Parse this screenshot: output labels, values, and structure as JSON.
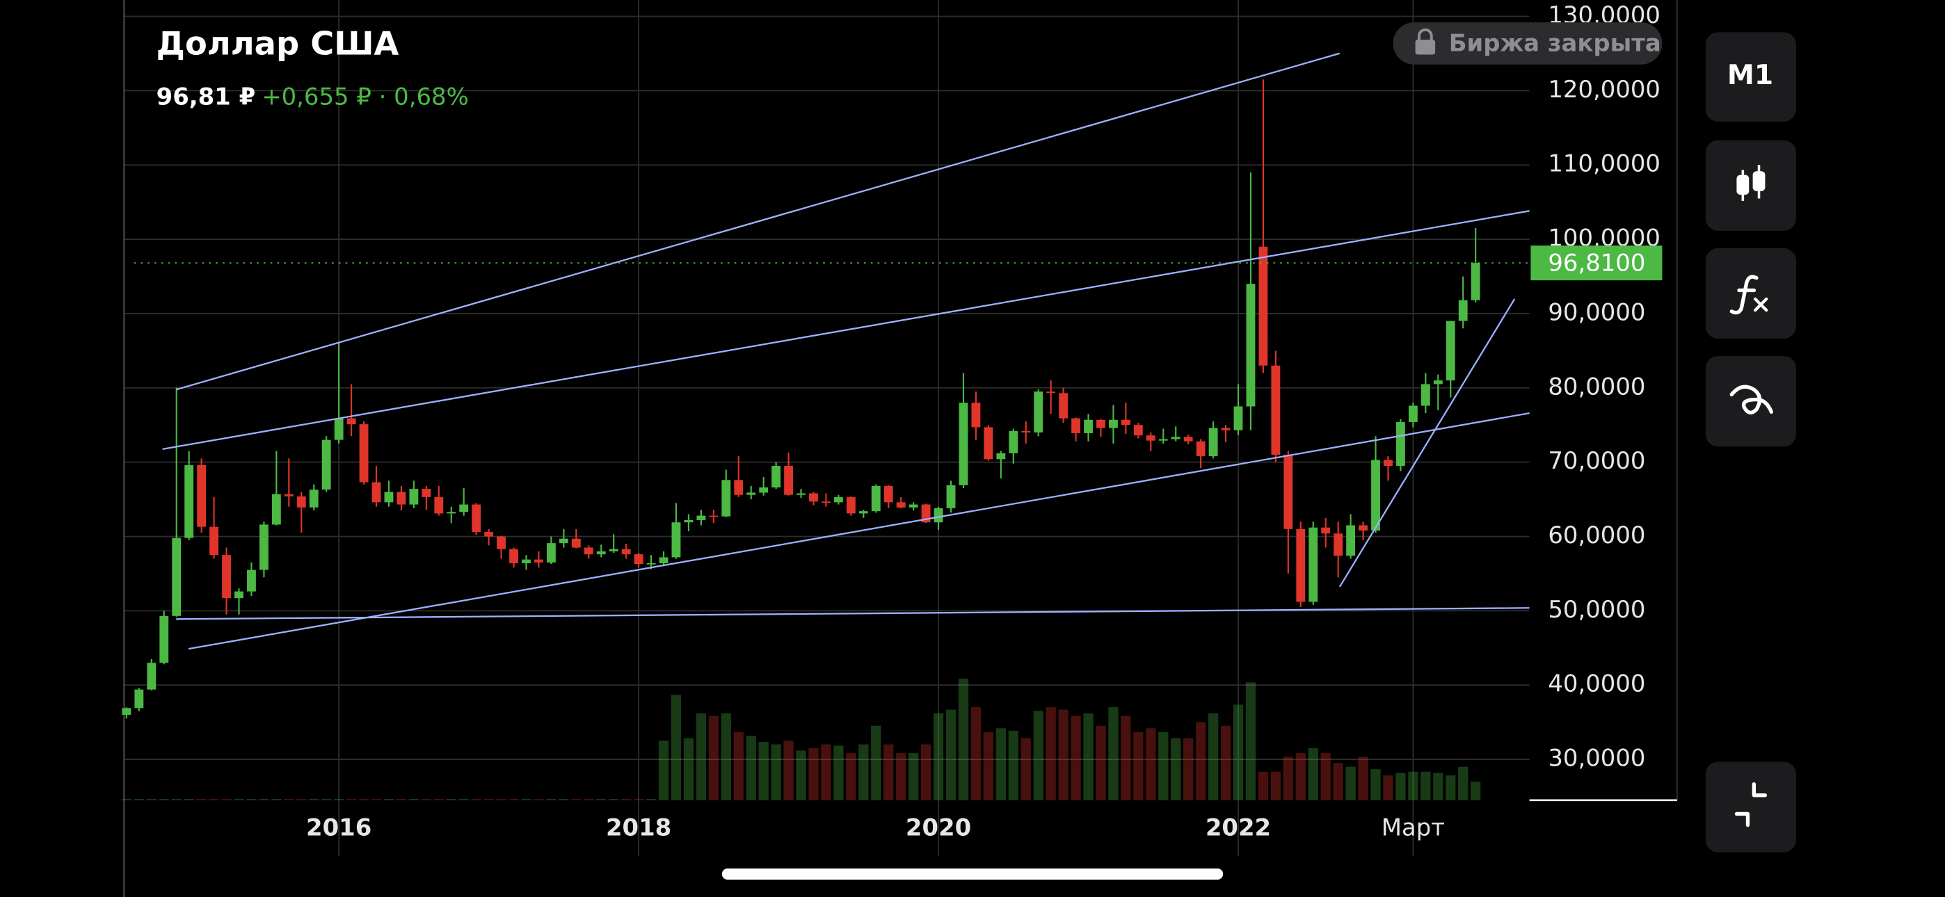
{
  "chart_data": {
    "type": "candlestick",
    "title": "Доллар США",
    "price_label": "96,81 ₽",
    "change_label": "+0,655 ₽ · 0,68%",
    "status_label": "Биржа закрыта",
    "interval_label": "M1",
    "x": [
      "2014-08",
      "2014-09",
      "2014-10",
      "2014-11",
      "2014-12",
      "2015-01",
      "2015-02",
      "2015-03",
      "2015-04",
      "2015-05",
      "2015-06",
      "2015-07",
      "2015-08",
      "2015-09",
      "2015-10",
      "2015-11",
      "2015-12",
      "2016-01",
      "2016-02",
      "2016-03",
      "2016-04",
      "2016-05",
      "2016-06",
      "2016-07",
      "2016-08",
      "2016-09",
      "2016-10",
      "2016-11",
      "2016-12",
      "2017-01",
      "2017-02",
      "2017-03",
      "2017-04",
      "2017-05",
      "2017-06",
      "2017-07",
      "2017-08",
      "2017-09",
      "2017-10",
      "2017-11",
      "2017-12",
      "2018-01",
      "2018-02",
      "2018-03",
      "2018-04",
      "2018-05",
      "2018-06",
      "2018-07",
      "2018-08",
      "2018-09",
      "2018-10",
      "2018-11",
      "2018-12",
      "2019-01",
      "2019-02",
      "2019-03",
      "2019-04",
      "2019-05",
      "2019-06",
      "2019-07",
      "2019-08",
      "2019-09",
      "2019-10",
      "2019-11",
      "2019-12",
      "2020-01",
      "2020-02",
      "2020-03",
      "2020-04",
      "2020-05",
      "2020-06",
      "2020-07",
      "2020-08",
      "2020-09",
      "2020-10",
      "2020-11",
      "2020-12",
      "2021-01",
      "2021-02",
      "2021-03",
      "2021-04",
      "2021-05",
      "2021-06",
      "2021-07",
      "2021-08",
      "2021-09",
      "2021-10",
      "2021-11",
      "2021-12",
      "2022-01",
      "2022-02",
      "2022-03",
      "2022-04",
      "2022-05",
      "2022-06",
      "2022-07",
      "2022-08",
      "2022-09",
      "2022-10",
      "2022-11",
      "2022-12",
      "2023-01",
      "2023-02",
      "2023-03",
      "2023-04",
      "2023-05",
      "2023-06",
      "2023-07",
      "2023-08"
    ],
    "open": [
      36,
      36.9,
      39.4,
      43.0,
      49.3,
      59.8,
      69.6,
      61.3,
      57.5,
      51.7,
      52.6,
      55.5,
      61.6,
      65.7,
      65.4,
      63.9,
      66.3,
      73.0,
      75.9,
      75.1,
      67.3,
      64.6,
      66.0,
      64.3,
      66.4,
      65.3,
      63.1,
      63.3,
      64.3,
      60.6,
      60.0,
      58.3,
      56.4,
      56.9,
      56.5,
      59.1,
      59.7,
      58.5,
      57.6,
      58.0,
      58.3,
      57.6,
      56.3,
      56.4,
      57.2,
      61.9,
      62.2,
      62.8,
      62.7,
      67.6,
      65.6,
      65.9,
      66.6,
      69.5,
      65.6,
      65.8,
      64.7,
      64.6,
      65.3,
      63.1,
      63.4,
      66.8,
      64.6,
      63.9,
      64.3,
      61.9,
      63.8,
      66.9,
      78.0,
      74.7,
      70.4,
      71.2,
      74.2,
      74.0,
      79.5,
      79.3,
      75.9,
      73.9,
      75.7,
      74.6,
      75.7,
      75.0,
      73.6,
      72.9,
      73.1,
      73.4,
      72.8,
      70.8,
      74.6,
      74.3,
      77.5,
      99.0,
      83.0,
      71.0,
      61,
      51.2,
      61.2,
      60.4,
      57.4,
      61.5,
      60.8,
      70.3,
      69.5,
      75.4,
      77.6,
      80.5,
      81.0,
      89.0,
      91.8
    ],
    "high": [
      37,
      39.6,
      43.5,
      50.0,
      80,
      71.5,
      70.5,
      65.3,
      58.5,
      53,
      56.5,
      62,
      71.5,
      70.5,
      66,
      67,
      73.5,
      86,
      80.5,
      75.5,
      69.5,
      67.5,
      66.8,
      67.5,
      66.8,
      66.8,
      64,
      66.5,
      64.5,
      61,
      60.1,
      58.5,
      57.5,
      58,
      60,
      61,
      61,
      58.8,
      58.9,
      60.3,
      59,
      57.8,
      57.5,
      58,
      64.5,
      63,
      63.6,
      63.6,
      69,
      70.8,
      66.8,
      68,
      70,
      71.3,
      66.4,
      66,
      65.8,
      65.6,
      65.4,
      63.6,
      67,
      66.9,
      65.3,
      64.6,
      64.4,
      64,
      67.5,
      82,
      79.5,
      75,
      71.5,
      74.5,
      75.5,
      79.8,
      81,
      80,
      76,
      76.5,
      75.8,
      77.7,
      78,
      75.3,
      74,
      74.5,
      74.8,
      73.7,
      73.1,
      75.5,
      75,
      80.5,
      109,
      121.5,
      85,
      71.5,
      62,
      62,
      62.5,
      62,
      63,
      62,
      73.5,
      70.8,
      75.8,
      78,
      82,
      81.8,
      89,
      95,
      101.5
    ],
    "low": [
      35.5,
      36.5,
      39.3,
      42.8,
      49.2,
      59.5,
      60.5,
      57,
      49.5,
      49.5,
      52,
      54.5,
      61.5,
      64,
      60.5,
      63.5,
      66,
      72.5,
      73.5,
      67,
      64,
      64,
      63.5,
      63.8,
      63.6,
      62.8,
      61.8,
      62.8,
      60.2,
      58.8,
      57,
      55.8,
      55.5,
      55.8,
      56.3,
      58.5,
      58.4,
      57,
      57.2,
      57.8,
      57,
      55.8,
      55.6,
      56,
      57,
      60.7,
      61.5,
      61.8,
      62.6,
      65.3,
      65,
      65.5,
      66.4,
      65.5,
      65.2,
      64.2,
      64,
      64.3,
      62.8,
      62.5,
      63.2,
      63.8,
      63.8,
      63.5,
      61.8,
      60.9,
      63.2,
      66.5,
      73,
      70.2,
      67.8,
      69.8,
      72.5,
      73.5,
      76.5,
      75.3,
      72.8,
      72.8,
      73.4,
      72.5,
      73.8,
      73.2,
      71.5,
      72.5,
      72.8,
      72.4,
      69.2,
      70.5,
      72.7,
      73.6,
      74.3,
      82,
      70,
      55,
      50.5,
      50.8,
      58.5,
      54.5,
      57,
      59.5,
      60.5,
      67.5,
      68.8,
      74.7,
      76.6,
      77,
      78.7,
      88,
      91.5
    ],
    "close": [
      36.9,
      39.4,
      43.0,
      49.3,
      59.8,
      69.6,
      61.3,
      57.5,
      51.7,
      52.6,
      55.5,
      61.6,
      65.7,
      65.4,
      63.9,
      66.3,
      73.0,
      75.9,
      75.1,
      67.3,
      64.6,
      66.0,
      64.3,
      66.4,
      65.3,
      63.1,
      63.3,
      64.3,
      60.6,
      60.0,
      58.3,
      56.4,
      56.9,
      56.5,
      59.1,
      59.7,
      58.5,
      57.6,
      58.0,
      58.3,
      57.6,
      56.3,
      56.4,
      57.2,
      61.9,
      62.2,
      62.8,
      62.7,
      67.6,
      65.6,
      65.9,
      66.6,
      69.5,
      65.6,
      65.8,
      64.7,
      64.6,
      65.3,
      63.1,
      63.4,
      66.8,
      64.6,
      63.9,
      64.3,
      61.9,
      63.8,
      66.9,
      78.0,
      74.7,
      70.4,
      71.2,
      74.2,
      74.0,
      79.5,
      79.3,
      75.9,
      73.9,
      75.7,
      74.6,
      75.7,
      75.0,
      73.6,
      72.9,
      73.1,
      73.4,
      72.8,
      70.8,
      74.6,
      74.3,
      77.5,
      94.0,
      83.0,
      71.0,
      61,
      51.2,
      61.2,
      60.4,
      57.4,
      61.5,
      60.8,
      70.3,
      69.5,
      75.4,
      77.6,
      80.5,
      81.0,
      89.0,
      91.8,
      96.81
    ],
    "volume": [
      1,
      1,
      1,
      1,
      1,
      1,
      1,
      1,
      1,
      1,
      1,
      1,
      1,
      1,
      1,
      1,
      1,
      1,
      1,
      1,
      1,
      1,
      1,
      1,
      1,
      1,
      1,
      1,
      1,
      1,
      1,
      1,
      1,
      1,
      1,
      1,
      1,
      1,
      1,
      1,
      1,
      1,
      1,
      48,
      85,
      50,
      70,
      68,
      70,
      55,
      52,
      47,
      45,
      48,
      40,
      42,
      45,
      44,
      38,
      45,
      60,
      45,
      38,
      38,
      45,
      70,
      73,
      98,
      75,
      55,
      58,
      56,
      50,
      72,
      75,
      73,
      68,
      70,
      60,
      75,
      68,
      55,
      58,
      55,
      50,
      50,
      63,
      70,
      60,
      77,
      95,
      23,
      23,
      35,
      38,
      42,
      38,
      30,
      27,
      35,
      25,
      20,
      22,
      23,
      23,
      22,
      20,
      27,
      15
    ],
    "ylim": [
      24.5,
      132.2
    ],
    "yticks": [
      {
        "value": 30,
        "label": "30,0000"
      },
      {
        "value": 40,
        "label": "40,0000"
      },
      {
        "value": 50,
        "label": "50,0000"
      },
      {
        "value": 60,
        "label": "60,0000"
      },
      {
        "value": 70,
        "label": "70,0000"
      },
      {
        "value": 80,
        "label": "80,0000"
      },
      {
        "value": 90,
        "label": "90,0000"
      },
      {
        "value": 100,
        "label": "100,0000"
      },
      {
        "value": 110,
        "label": "110,0000"
      },
      {
        "value": 120,
        "label": "120,0000"
      },
      {
        "value": 130,
        "label": "130,0000"
      }
    ],
    "xticks": [
      {
        "value": "2016-01",
        "label": "2016"
      },
      {
        "value": "2018-01",
        "label": "2018"
      },
      {
        "value": "2020-01",
        "label": "2020"
      },
      {
        "value": "2022-01",
        "label": "2022"
      },
      {
        "value": "2023-03",
        "label": "Март"
      }
    ],
    "last_price": {
      "value": 96.81,
      "label": "96,8100"
    },
    "up_color": "#4cb944",
    "down_color": "#e0352b",
    "grid": true
  }
}
